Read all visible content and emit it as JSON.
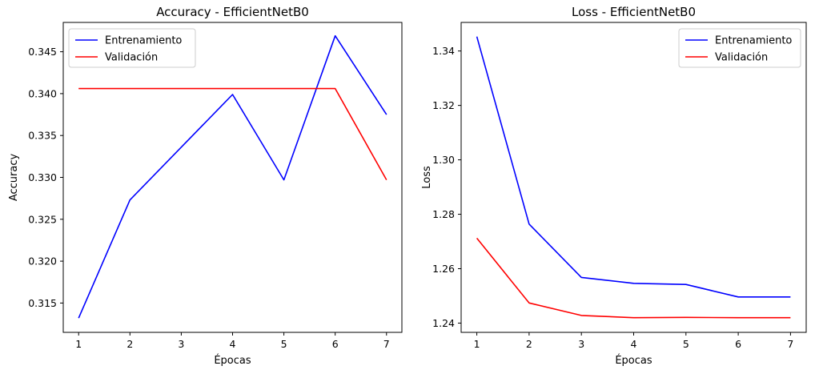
{
  "chart_data": [
    {
      "type": "line",
      "title": "Accuracy - EfficientNetB0",
      "xlabel": "Épocas",
      "ylabel": "Accuracy",
      "x": [
        1,
        2,
        3,
        4,
        5,
        6,
        7
      ],
      "xticks": [
        "1",
        "2",
        "3",
        "4",
        "5",
        "6",
        "7"
      ],
      "yticks": [
        "0.315",
        "0.320",
        "0.325",
        "0.330",
        "0.335",
        "0.340",
        "0.345"
      ],
      "xlim": [
        0.7,
        7.3
      ],
      "ylim": [
        0.3115,
        0.3485
      ],
      "legend_position": "top-left",
      "grid": false,
      "series": [
        {
          "name": "Entrenamiento",
          "color": "#0000ff",
          "values": [
            0.3132,
            0.3273,
            0.3336,
            0.3399,
            0.3297,
            0.3469,
            0.3375
          ]
        },
        {
          "name": "Validación",
          "color": "#ff0000",
          "values": [
            0.3406,
            0.3406,
            0.3406,
            0.3406,
            0.3406,
            0.3406,
            0.3297
          ]
        }
      ]
    },
    {
      "type": "line",
      "title": "Loss - EfficientNetB0",
      "xlabel": "Épocas",
      "ylabel": "Loss",
      "x": [
        1,
        2,
        3,
        4,
        5,
        6,
        7
      ],
      "xticks": [
        "1",
        "2",
        "3",
        "4",
        "5",
        "6",
        "7"
      ],
      "yticks": [
        "1.24",
        "1.26",
        "1.28",
        "1.30",
        "1.32",
        "1.34"
      ],
      "xlim": [
        0.7,
        7.3
      ],
      "ylim": [
        1.2366,
        1.3505
      ],
      "legend_position": "top-right",
      "grid": false,
      "series": [
        {
          "name": "Entrenamiento",
          "color": "#0000ff",
          "values": [
            1.3453,
            1.2764,
            1.2568,
            1.2546,
            1.2542,
            1.2496,
            1.2496
          ]
        },
        {
          "name": "Validación",
          "color": "#ff0000",
          "values": [
            1.2712,
            1.2474,
            1.2428,
            1.242,
            1.2421,
            1.242,
            1.242
          ]
        }
      ]
    }
  ]
}
